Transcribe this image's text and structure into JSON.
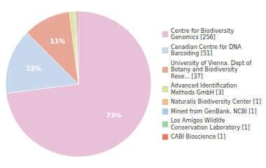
{
  "chart_data": {
    "type": "pie",
    "categories": [
      "Centre for Biodiversity\nGenomics [256]",
      "Canadian Centre for DNA\nBarcoding [51]",
      "University of Vienna. Dept of\nBotany and Biodiversity\nRese... [37]",
      "Advanced Identification\nMethods GmbH [3]",
      "Naturalis Biodiversity Center [1]",
      "Mined from GenBank, NCBI [1]",
      "Los Amigos Wildlife\nConservation Laboratory [1]",
      "CABI Bioscience [1]"
    ],
    "values": [
      72.93,
      14.53,
      10.54,
      0.85,
      0.28,
      0.28,
      0.28,
      0.28
    ],
    "value_labels": [
      "73%",
      "15%",
      "11%",
      null,
      null,
      null,
      null,
      null
    ],
    "data_labels": true,
    "colors": [
      "#e8c0d8",
      "#c8d8ec",
      "#e8a898",
      "#d8e898",
      "#f0c080",
      "#a8c8e8",
      "#98d898",
      "#e87858"
    ],
    "legend": "right"
  }
}
